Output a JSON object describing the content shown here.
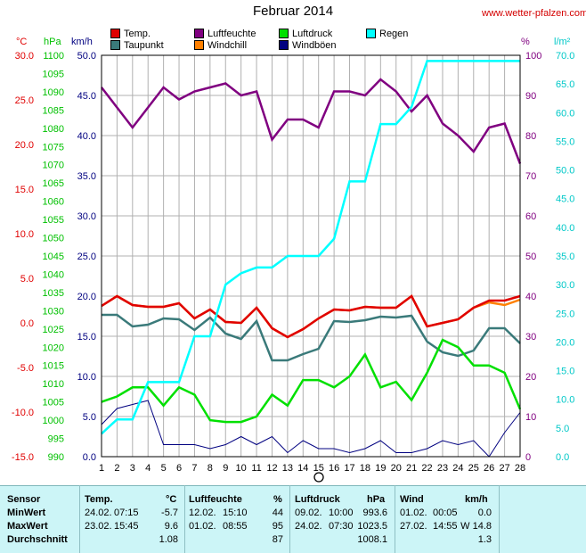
{
  "page": {
    "title": "Februar 2014",
    "site": "www.wetter-pfalzen.com"
  },
  "units": {
    "temp": "°C",
    "pressure": "hPa",
    "wind": "km/h",
    "humidity": "%",
    "rain": "l/m²"
  },
  "legend": [
    {
      "label": "Temp.",
      "color": "#e00000"
    },
    {
      "label": "Luftfeuchte",
      "color": "#800080"
    },
    {
      "label": "Luftdruck",
      "color": "#00e000"
    },
    {
      "label": "Regen",
      "color": "#00ffff"
    },
    {
      "label": "Taupunkt",
      "color": "#3a7a7a"
    },
    {
      "label": "Windchill",
      "color": "#ff8000"
    },
    {
      "label": "Windböen",
      "color": "#000080"
    }
  ],
  "chart_data": {
    "type": "line",
    "x": [
      1,
      2,
      3,
      4,
      5,
      6,
      7,
      8,
      9,
      10,
      11,
      12,
      13,
      14,
      15,
      16,
      17,
      18,
      19,
      20,
      21,
      22,
      23,
      24,
      25,
      26,
      27,
      28
    ],
    "axes": {
      "temp": {
        "min": -15,
        "max": 30,
        "step": 5,
        "ticks": [
          "30.0",
          "25.0",
          "20.0",
          "15.0",
          "10.0",
          "5.0",
          "0.0",
          "-5.0",
          "-10.0",
          "-15.0"
        ]
      },
      "pressure": {
        "min": 990,
        "max": 1100,
        "step": 5,
        "ticks": [
          "1100",
          "1095",
          "1090",
          "1085",
          "1080",
          "1075",
          "1070",
          "1065",
          "1060",
          "1055",
          "1050",
          "1045",
          "1040",
          "1035",
          "1030",
          "1025",
          "1020",
          "1015",
          "1010",
          "1005",
          "1000",
          "995",
          "990"
        ]
      },
      "wind": {
        "min": 0,
        "max": 50,
        "step": 5,
        "ticks": [
          "50.0",
          "45.0",
          "40.0",
          "35.0",
          "30.0",
          "25.0",
          "20.0",
          "15.0",
          "10.0",
          "5.0",
          "0.0"
        ]
      },
      "humidity": {
        "min": 0,
        "max": 100,
        "step": 10,
        "ticks": [
          "100",
          "90",
          "80",
          "70",
          "60",
          "50",
          "40",
          "30",
          "20",
          "10",
          "0"
        ]
      },
      "rain": {
        "min": 0,
        "max": 70,
        "step": 5,
        "ticks": [
          "70.0",
          "65.0",
          "60.0",
          "55.0",
          "50.0",
          "45.0",
          "40.0",
          "35.0",
          "30.0",
          "25.0",
          "20.0",
          "15.0",
          "10.0",
          "5.0",
          "0.0"
        ]
      }
    },
    "series": [
      {
        "name": "Temp.",
        "axis": "temp",
        "color": "#e00000",
        "values": [
          1.9,
          3.0,
          2.0,
          1.8,
          1.8,
          2.2,
          0.5,
          1.5,
          0.1,
          0.0,
          1.7,
          -0.6,
          -1.6,
          -0.7,
          0.5,
          1.5,
          1.4,
          1.8,
          1.7,
          1.7,
          3.0,
          -0.4,
          0.0,
          0.4,
          1.7,
          2.5,
          2.5,
          3.0
        ]
      },
      {
        "name": "Taupunkt",
        "axis": "temp",
        "color": "#3a7a7a",
        "values": [
          0.9,
          0.9,
          -0.4,
          -0.2,
          0.5,
          0.4,
          -0.8,
          0.6,
          -1.2,
          -1.8,
          0.2,
          -4.2,
          -4.2,
          -3.5,
          -2.9,
          0.2,
          0.1,
          0.3,
          0.7,
          0.6,
          0.8,
          -2.1,
          -3.3,
          -3.7,
          -3.1,
          -0.6,
          -0.6,
          -2.3
        ]
      },
      {
        "name": "Windchill",
        "axis": "temp",
        "color": "#ff8000",
        "values": [
          1.9,
          3.0,
          2.0,
          1.8,
          1.8,
          2.2,
          0.5,
          1.5,
          0.1,
          0.0,
          1.7,
          -0.6,
          -1.6,
          -0.7,
          0.5,
          1.5,
          1.4,
          1.8,
          1.7,
          1.7,
          3.0,
          -0.4,
          0.0,
          0.4,
          1.7,
          2.3,
          2.0,
          2.6
        ]
      },
      {
        "name": "Luftfeuchte",
        "axis": "humidity",
        "color": "#800080",
        "values": [
          92,
          87,
          82,
          87,
          92,
          89,
          91,
          92,
          93,
          90,
          91,
          79,
          84,
          84,
          82,
          91,
          91,
          90,
          94,
          91,
          86,
          90,
          83,
          80,
          76,
          82,
          83,
          73
        ]
      },
      {
        "name": "Luftdruck",
        "axis": "pressure",
        "color": "#00e000",
        "values": [
          1005,
          1006.5,
          1009,
          1009,
          1004,
          1009,
          1007,
          1000,
          999.5,
          999.5,
          1001,
          1007,
          1004,
          1011,
          1011,
          1009,
          1012,
          1018,
          1009,
          1010.5,
          1005.5,
          1013,
          1022,
          1020,
          1015,
          1015,
          1013,
          1003
        ]
      },
      {
        "name": "Regen",
        "axis": "rain",
        "color": "#00ffff",
        "values": [
          4,
          6.5,
          6.5,
          13,
          13,
          13,
          21,
          21,
          30,
          32,
          33,
          33,
          35,
          35,
          35,
          38,
          48,
          48,
          58,
          58,
          61,
          69,
          69,
          69,
          69,
          69,
          69,
          69
        ]
      },
      {
        "name": "Windböen",
        "axis": "wind",
        "color": "#000080",
        "values": [
          4,
          6,
          6.5,
          7,
          1.5,
          1.5,
          1.5,
          1,
          1.5,
          2.5,
          1.5,
          2.5,
          0.5,
          2,
          1,
          1,
          0.5,
          1,
          2,
          0.5,
          0.5,
          1,
          2,
          1.5,
          2,
          0,
          3,
          5.5
        ]
      }
    ]
  },
  "table": {
    "headers": {
      "sensor": "Sensor",
      "temp": "Temp.",
      "temp_unit": "°C",
      "hum": "Luftfeuchte",
      "hum_unit": "%",
      "press": "Luftdruck",
      "press_unit": "hPa",
      "wind": "Wind",
      "wind_unit": "km/h"
    },
    "rows": [
      {
        "label": "MinWert",
        "t_date": "24.02.",
        "t_time": "07:15",
        "t_val": "-5.7",
        "h_date": "12.02.",
        "h_time": "15:10",
        "h_val": "44",
        "p_date": "09.02.",
        "p_time": "10:00",
        "p_val": "993.6",
        "w_date": "01.02.",
        "w_time": "00:05",
        "w_val": "0.0"
      },
      {
        "label": "MaxWert",
        "t_date": "23.02.",
        "t_time": "15:45",
        "t_val": "9.6",
        "h_date": "01.02.",
        "h_time": "08:55",
        "h_val": "95",
        "p_date": "24.02.",
        "p_time": "07:30",
        "p_val": "1023.5",
        "w_date": "27.02.",
        "w_time": "14:55",
        "w_val": "W 14.8"
      },
      {
        "label": "Durchschnitt",
        "t_date": "",
        "t_time": "",
        "t_val": "1.08",
        "h_date": "",
        "h_time": "",
        "h_val": "87",
        "p_date": "",
        "p_time": "",
        "p_val": "1008.1",
        "w_date": "",
        "w_time": "",
        "w_val": "1.3"
      }
    ]
  }
}
